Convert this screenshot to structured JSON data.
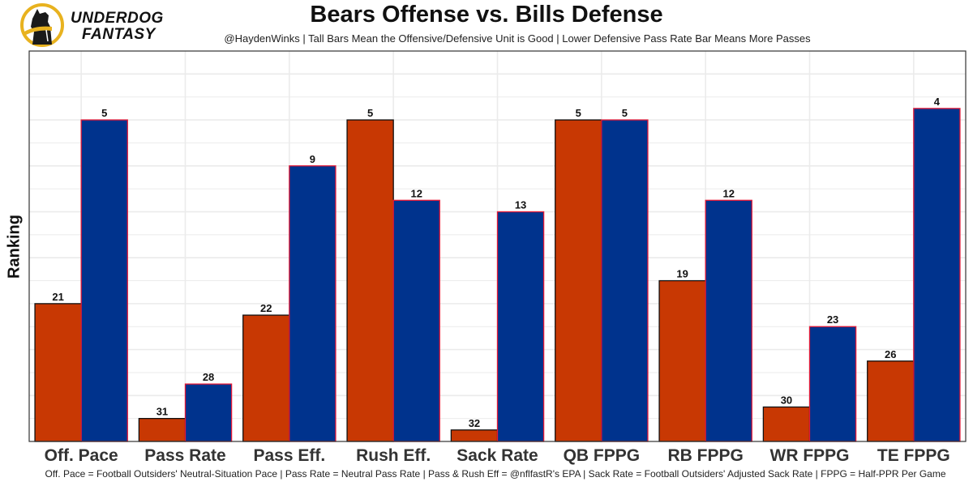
{
  "brand": {
    "line1": "UNDERDOG",
    "line2": "FANTASY",
    "logo": "underdog-dog-logo"
  },
  "colors": {
    "offense_fill": "#C83803",
    "offense_stroke": "#111111",
    "defense_fill": "#00338D",
    "defense_stroke": "#E31837",
    "grid": "#EBEBEB",
    "panel_border": "#333333",
    "logo_ring": "#E8B21F"
  },
  "chart_data": {
    "type": "bar",
    "title": "Bears Offense vs. Bills Defense",
    "subtitle": "@HaydenWinks | Tall Bars Mean the Offensive/Defensive Unit is Good | Lower Defensive Pass Rate Bar Means More Passes",
    "xlabel": "",
    "ylabel": "Ranking",
    "caption": "Off. Pace = Football Outsiders' Neutral-Situation Pace | Pass Rate = Neutral Pass Rate | Pass & Rush Eff = @nflfastR's EPA | Sack Rate = Football Outsiders' Adjusted Sack Rate | FPPG = Half-PPR Per Game",
    "categories": [
      "Off. Pace",
      "Pass Rate",
      "Pass Eff.",
      "Rush Eff.",
      "Sack Rate",
      "QB FPPG",
      "RB FPPG",
      "WR FPPG",
      "TE FPPG"
    ],
    "series": [
      {
        "name": "Bears Offense",
        "values": [
          21,
          31,
          22,
          5,
          32,
          5,
          19,
          30,
          26
        ]
      },
      {
        "name": "Bills Defense",
        "values": [
          5,
          28,
          9,
          12,
          13,
          5,
          12,
          23,
          4
        ]
      }
    ],
    "value_scale": "inverted rank: bar height = 33 - rank",
    "ylim": [
      0,
      34
    ],
    "y_ticks_shown": false,
    "grid": true,
    "legend": "none"
  }
}
